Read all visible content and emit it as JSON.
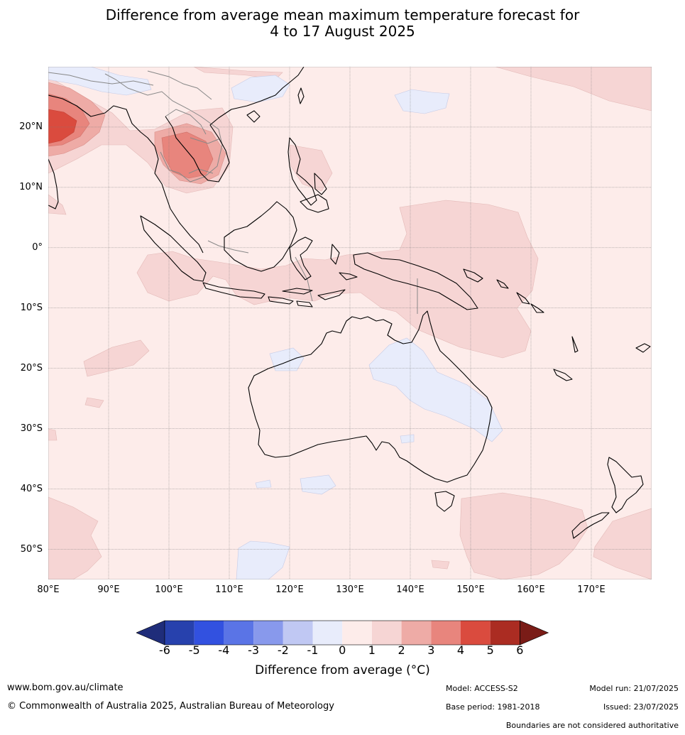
{
  "title_line1": "Difference from average mean maximum temperature forecast for",
  "title_line2": "4 to 17 August 2025",
  "map": {
    "extent": {
      "lon_min": 80,
      "lon_max": 180,
      "lat_min": -55,
      "lat_max": 30
    },
    "lat_labels": [
      {
        "lat": 20,
        "label": "20°N"
      },
      {
        "lat": 10,
        "label": "10°N"
      },
      {
        "lat": 0,
        "label": "0°"
      },
      {
        "lat": -10,
        "label": "10°S"
      },
      {
        "lat": -20,
        "label": "20°S"
      },
      {
        "lat": -30,
        "label": "30°S"
      },
      {
        "lat": -40,
        "label": "40°S"
      },
      {
        "lat": -50,
        "label": "50°S"
      }
    ],
    "lon_labels": [
      {
        "lon": 80,
        "label": "80°E"
      },
      {
        "lon": 90,
        "label": "90°E"
      },
      {
        "lon": 100,
        "label": "100°E"
      },
      {
        "lon": 110,
        "label": "110°E"
      },
      {
        "lon": 120,
        "label": "120°E"
      },
      {
        "lon": 130,
        "label": "130°E"
      },
      {
        "lon": 140,
        "label": "140°E"
      },
      {
        "lon": 150,
        "label": "150°E"
      },
      {
        "lon": 160,
        "label": "160°E"
      },
      {
        "lon": 170,
        "label": "170°E"
      }
    ]
  },
  "colorbar": {
    "label": "Difference from average ($^\\circ$C)",
    "label_display": "Difference from average (°C)",
    "ticks": [
      "-6",
      "-5",
      "-4",
      "-3",
      "-2",
      "-1",
      "0",
      "1",
      "2",
      "3",
      "4",
      "5",
      "6"
    ],
    "under_color": "#1f2d7a",
    "over_color": "#7a1c17",
    "colors": [
      "#2741ad",
      "#3251e0",
      "#5a74e6",
      "#8899ec",
      "#c0c8f3",
      "#e8ecfb",
      "#fdecea",
      "#f6d5d4",
      "#eeaba6",
      "#e8857d",
      "#da4b3e",
      "#ab2c22"
    ]
  },
  "footer": {
    "website": "www.bom.gov.au/climate",
    "copyright": "© Commonwealth of Australia 2025, Australian Bureau of Meteorology",
    "model": "Model: ACCESS-S2",
    "base_period": "Base period: 1981-2018",
    "model_run": "Model run: 21/07/2025",
    "issued": "Issued: 23/07/2025",
    "disclaimer": "Boundaries are not considered authoritative"
  }
}
